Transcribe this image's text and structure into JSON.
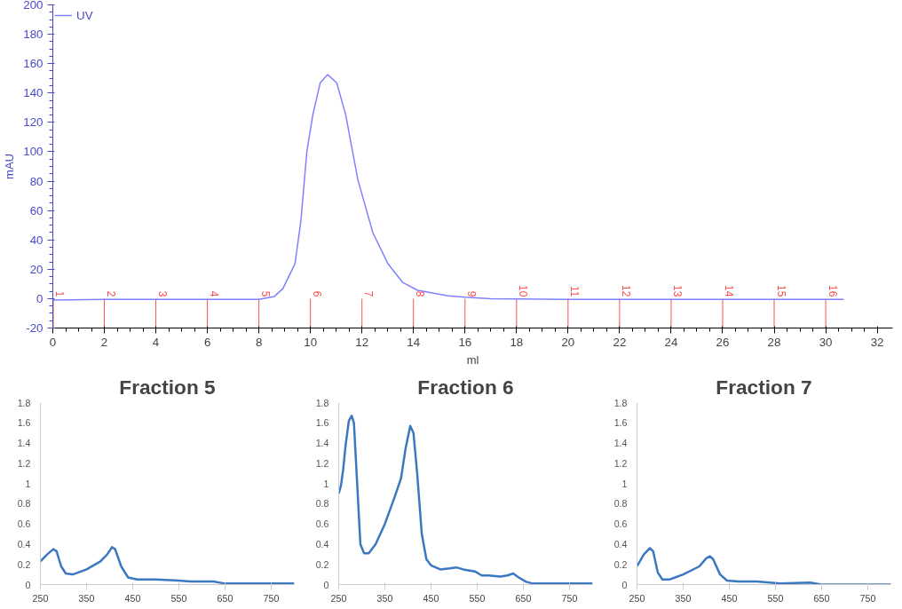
{
  "chart_data": [
    {
      "type": "line",
      "xlabel": "ml",
      "ylabel": "mAU",
      "legend": "top left",
      "grid": false,
      "xlim": [
        0,
        32.6
      ],
      "xticks": [
        0,
        2,
        4,
        6,
        8,
        10,
        12,
        14,
        16,
        18,
        20,
        22,
        24,
        26,
        28,
        30,
        32
      ],
      "ylim": [
        -20,
        200
      ],
      "yticks": [
        -20,
        0,
        20,
        40,
        60,
        80,
        100,
        120,
        140,
        160,
        180,
        200
      ],
      "series": [
        {
          "name": "UV",
          "color": "#8080ff",
          "x": [
            0,
            2,
            4,
            6,
            8,
            8.6,
            8.93,
            9.4,
            9.63,
            9.86,
            10.09,
            10.38,
            10.67,
            11.02,
            11.37,
            11.84,
            12.42,
            13.0,
            13.58,
            14.16,
            15.3,
            16.0,
            17,
            20,
            24,
            28,
            30.7
          ],
          "values": [
            -1,
            -0.5,
            -0.5,
            -0.5,
            -0.5,
            1.5,
            6.8,
            23.7,
            53,
            100,
            125,
            147,
            152.5,
            147,
            125,
            81,
            45,
            24,
            11,
            5.7,
            2,
            1,
            0,
            -0.5,
            -0.5,
            -0.5,
            -0.5
          ]
        }
      ],
      "ref_lines": [
        {
          "axis": "x",
          "value": 0,
          "color": "#ff5050"
        },
        {
          "axis": "x",
          "value": 2,
          "color": "#ff5050"
        },
        {
          "axis": "x",
          "value": 4,
          "color": "#ff5050"
        },
        {
          "axis": "x",
          "value": 6,
          "color": "#ff5050"
        },
        {
          "axis": "x",
          "value": 8,
          "color": "#ff5050"
        },
        {
          "axis": "x",
          "value": 10,
          "color": "#ff5050"
        },
        {
          "axis": "x",
          "value": 12,
          "color": "#ff5050"
        },
        {
          "axis": "x",
          "value": 14,
          "color": "#ff5050"
        },
        {
          "axis": "x",
          "value": 16,
          "color": "#ff5050"
        },
        {
          "axis": "x",
          "value": 18,
          "color": "#ff5050"
        },
        {
          "axis": "x",
          "value": 20,
          "color": "#ff5050"
        },
        {
          "axis": "x",
          "value": 22,
          "color": "#ff5050"
        },
        {
          "axis": "x",
          "value": 24,
          "color": "#ff5050"
        },
        {
          "axis": "x",
          "value": 26,
          "color": "#ff5050"
        },
        {
          "axis": "x",
          "value": 28,
          "color": "#ff5050"
        },
        {
          "axis": "x",
          "value": 30,
          "color": "#ff5050"
        }
      ],
      "annotations": [
        {
          "text": "1",
          "x": 0,
          "y": 0
        },
        {
          "text": "2",
          "x": 2,
          "y": 0
        },
        {
          "text": "3",
          "x": 4,
          "y": 0
        },
        {
          "text": "4",
          "x": 6,
          "y": 0
        },
        {
          "text": "5",
          "x": 8,
          "y": 0
        },
        {
          "text": "6",
          "x": 10,
          "y": 0
        },
        {
          "text": "7",
          "x": 12,
          "y": 0
        },
        {
          "text": "8",
          "x": 14,
          "y": 0
        },
        {
          "text": "9",
          "x": 16,
          "y": 0
        },
        {
          "text": "10",
          "x": 18,
          "y": 0
        },
        {
          "text": "11",
          "x": 20,
          "y": 0
        },
        {
          "text": "12",
          "x": 22,
          "y": 0
        },
        {
          "text": "13",
          "x": 24,
          "y": 0
        },
        {
          "text": "14",
          "x": 26,
          "y": 0
        },
        {
          "text": "15",
          "x": 28,
          "y": 0
        },
        {
          "text": "16",
          "x": 30,
          "y": 0
        }
      ]
    },
    {
      "type": "line",
      "title": "Fraction 5",
      "grid": false,
      "xlim": [
        250,
        800
      ],
      "xticks": [
        250,
        350,
        450,
        550,
        650,
        750
      ],
      "ylim": [
        0,
        1.8
      ],
      "yticks": [
        0,
        0.2,
        0.4,
        0.6,
        0.8,
        1,
        1.2,
        1.4,
        1.6,
        1.8
      ],
      "series": [
        {
          "color": "#3c78c0",
          "x": [
            250,
            265,
            278,
            285,
            295,
            305,
            320,
            350,
            380,
            395,
            405,
            412,
            425,
            440,
            460,
            500,
            550,
            575,
            625,
            650,
            700,
            800
          ],
          "values": [
            0.23,
            0.3,
            0.35,
            0.33,
            0.18,
            0.11,
            0.1,
            0.15,
            0.23,
            0.3,
            0.37,
            0.35,
            0.18,
            0.07,
            0.05,
            0.05,
            0.04,
            0.03,
            0.03,
            0.01,
            0.01,
            0.01
          ]
        }
      ]
    },
    {
      "type": "line",
      "title": "Fraction 6",
      "grid": false,
      "xlim": [
        250,
        800
      ],
      "xticks": [
        250,
        350,
        450,
        550,
        650,
        750
      ],
      "ylim": [
        0,
        1.8
      ],
      "yticks": [
        0,
        0.2,
        0.4,
        0.6,
        0.8,
        1,
        1.2,
        1.4,
        1.6,
        1.8
      ],
      "series": [
        {
          "color": "#3c78c0",
          "x": [
            250,
            255,
            260,
            265,
            272,
            278,
            283,
            290,
            297,
            305,
            315,
            330,
            350,
            370,
            385,
            395,
            405,
            412,
            420,
            430,
            440,
            450,
            470,
            490,
            505,
            520,
            545,
            560,
            575,
            600,
            615,
            628,
            640,
            655,
            670,
            800
          ],
          "values": [
            0.9,
            0.98,
            1.15,
            1.38,
            1.62,
            1.67,
            1.6,
            1.0,
            0.4,
            0.31,
            0.31,
            0.4,
            0.6,
            0.85,
            1.05,
            1.35,
            1.57,
            1.5,
            1.1,
            0.5,
            0.25,
            0.19,
            0.15,
            0.16,
            0.17,
            0.15,
            0.13,
            0.09,
            0.09,
            0.08,
            0.09,
            0.11,
            0.07,
            0.03,
            0.01,
            0.01
          ]
        }
      ]
    },
    {
      "type": "line",
      "title": "Fraction 7",
      "grid": false,
      "xlim": [
        250,
        800
      ],
      "xticks": [
        250,
        350,
        450,
        550,
        650,
        750
      ],
      "ylim": [
        0,
        1.8
      ],
      "yticks": [
        0,
        0.2,
        0.4,
        0.6,
        0.8,
        1,
        1.2,
        1.4,
        1.6,
        1.8
      ],
      "series": [
        {
          "color": "#3c78c0",
          "x": [
            250,
            265,
            278,
            285,
            295,
            305,
            320,
            350,
            385,
            400,
            408,
            415,
            430,
            445,
            470,
            510,
            560,
            625,
            650,
            800
          ],
          "values": [
            0.18,
            0.3,
            0.36,
            0.33,
            0.12,
            0.05,
            0.05,
            0.1,
            0.18,
            0.26,
            0.28,
            0.25,
            0.1,
            0.04,
            0.03,
            0.03,
            0.01,
            0.02,
            0.0,
            0.0
          ]
        }
      ]
    }
  ]
}
